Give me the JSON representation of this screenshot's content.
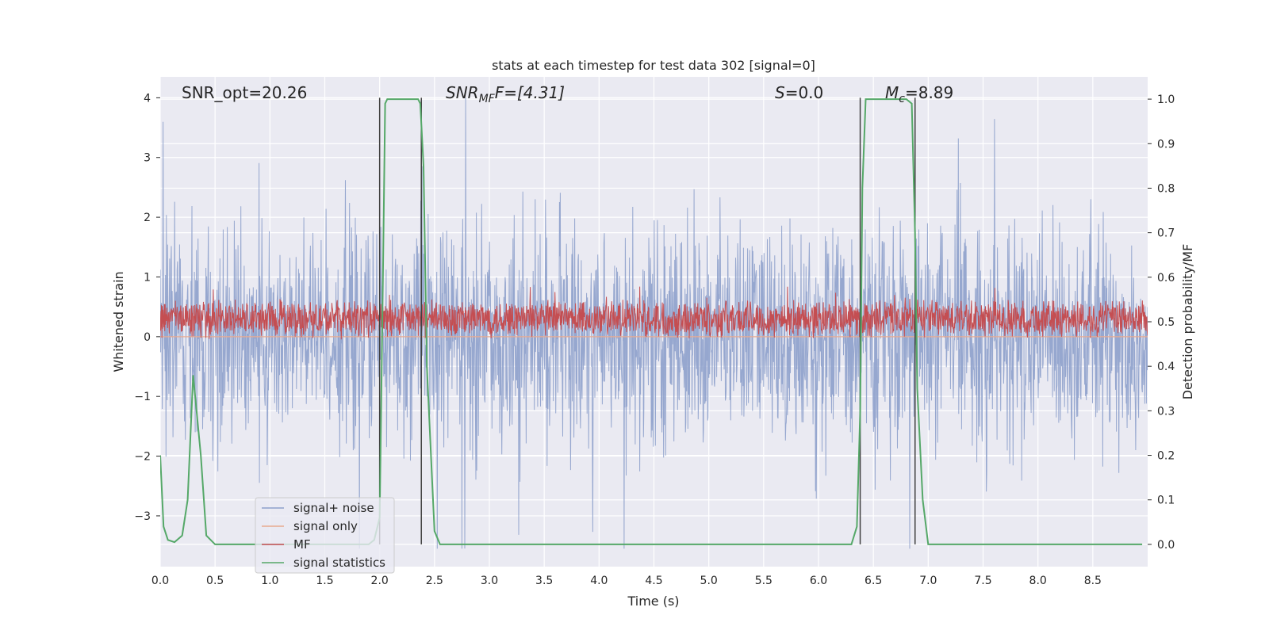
{
  "chart_data": {
    "type": "line",
    "title": "stats at each timestep for test data 302 [signal=0]",
    "xlabel": "Time (s)",
    "ylabel": "Whitened strain",
    "ylabel_right": "Detection probability/MF",
    "xlim": [
      0.0,
      9.0
    ],
    "ylim": [
      -3.85,
      4.35
    ],
    "ylim_right": [
      -0.05,
      1.05
    ],
    "xticks": [
      "0.0",
      "0.5",
      "1.0",
      "1.5",
      "2.0",
      "2.5",
      "3.0",
      "3.5",
      "4.0",
      "4.5",
      "5.0",
      "5.5",
      "6.0",
      "6.5",
      "7.0",
      "7.5",
      "8.0",
      "8.5"
    ],
    "yticks": [
      "4",
      "3",
      "2",
      "1",
      "0",
      "−1",
      "−2",
      "−3"
    ],
    "yticks_right": [
      "1.0",
      "0.9",
      "0.8",
      "0.7",
      "0.6",
      "0.5",
      "0.4",
      "0.3",
      "0.2",
      "0.1",
      "0.0"
    ],
    "grid": true,
    "legend_position": "lower-left",
    "annotations": {
      "snr_opt": "SNR_opt=20.26",
      "snr_mf_main": "SNR",
      "snr_mf_sub": "MF",
      "snr_mf_val": "F=[4.31]",
      "s_main": "S",
      "s_val": "=0.0",
      "mc_main": "M",
      "mc_sub": "c",
      "mc_val": "=8.89"
    },
    "series": [
      {
        "name": "signal+ noise",
        "color": "#8da0cb",
        "kind": "noise",
        "amplitude_left": 1.6,
        "duration": 9.0
      },
      {
        "name": "signal only",
        "color": "#e8a98f",
        "kind": "flat",
        "value_left": 0.0
      },
      {
        "name": "MF",
        "color": "#c44e52",
        "kind": "noise",
        "center_left": 0.3,
        "amplitude_left": 0.35,
        "duration": 9.0
      },
      {
        "name": "signal statistics",
        "color": "#55a868",
        "kind": "line",
        "axis": "right",
        "x": [
          0.0,
          0.03,
          0.07,
          0.13,
          0.2,
          0.25,
          0.3,
          0.37,
          0.42,
          0.5,
          0.6,
          1.0,
          1.5,
          1.9,
          1.95,
          2.0,
          2.03,
          2.05,
          2.07,
          2.13,
          2.2,
          2.3,
          2.35,
          2.37,
          2.4,
          2.43,
          2.5,
          2.55,
          2.6,
          3.0,
          4.0,
          5.0,
          6.0,
          6.3,
          6.35,
          6.38,
          6.4,
          6.43,
          6.5,
          6.6,
          6.7,
          6.8,
          6.85,
          6.88,
          6.9,
          6.95,
          7.0,
          7.05,
          7.5,
          8.0,
          8.5,
          8.95
        ],
        "y": [
          0.2,
          0.04,
          0.01,
          0.005,
          0.02,
          0.1,
          0.38,
          0.2,
          0.02,
          0.0,
          0.0,
          0.0,
          0.0,
          0.0,
          0.01,
          0.06,
          0.6,
          0.99,
          1.0,
          1.0,
          1.0,
          1.0,
          1.0,
          0.99,
          0.85,
          0.4,
          0.03,
          0.0,
          0.0,
          0.0,
          0.0,
          0.0,
          0.0,
          0.0,
          0.04,
          0.3,
          0.8,
          1.0,
          1.0,
          1.0,
          1.0,
          1.0,
          0.99,
          0.7,
          0.35,
          0.1,
          0.0,
          0.0,
          0.0,
          0.0,
          0.0,
          0.0
        ]
      }
    ],
    "vlines": [
      2.0,
      2.38,
      6.38,
      6.88
    ],
    "vlines_color": "#404040"
  }
}
